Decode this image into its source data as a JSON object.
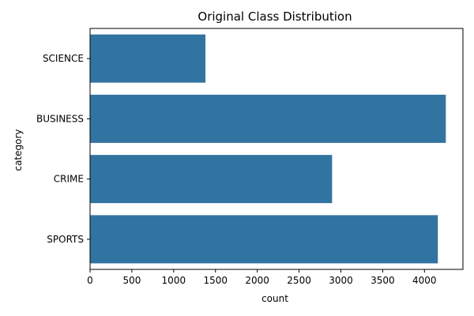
{
  "chart_data": {
    "type": "bar",
    "orientation": "horizontal",
    "title": "Original Class Distribution",
    "xlabel": "count",
    "ylabel": "category",
    "categories": [
      "SCIENCE",
      "BUSINESS",
      "CRIME",
      "SPORTS"
    ],
    "values": [
      1380,
      4255,
      2895,
      4160
    ],
    "xlim": [
      0,
      4460
    ],
    "xticks": [
      0,
      500,
      1000,
      1500,
      2000,
      2500,
      3000,
      3500,
      4000
    ],
    "grid": false,
    "bar_color": "#3274a1"
  }
}
